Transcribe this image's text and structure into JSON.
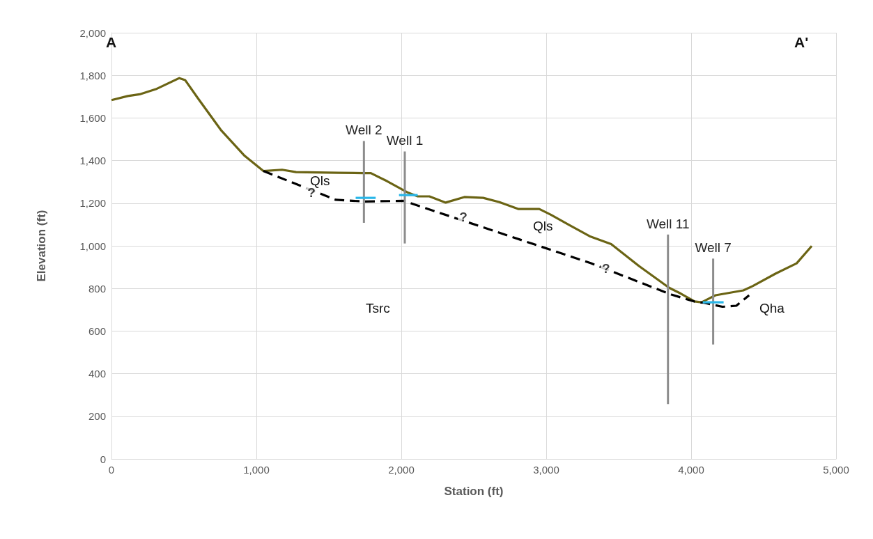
{
  "chart_data": {
    "type": "line",
    "xlabel": "Station (ft)",
    "ylabel": "Elevation (ft)",
    "xlim": [
      0,
      5000
    ],
    "xticks": [
      0,
      {
        "value": 1000,
        "label": "1,000"
      },
      {
        "value": 2000,
        "label": "2,000"
      },
      {
        "value": 3000,
        "label": "3,000"
      },
      {
        "value": 4000,
        "label": "4,000"
      },
      {
        "value": 5000,
        "label": "5,000"
      }
    ],
    "ylim": [
      0,
      2000
    ],
    "yticks": [
      0,
      200,
      400,
      600,
      800,
      {
        "value": 1000,
        "label": "1,000"
      },
      {
        "value": 1200,
        "label": "1,200"
      },
      {
        "value": 1400,
        "label": "1,400"
      },
      {
        "value": 1600,
        "label": "1,600"
      },
      {
        "value": 1800,
        "label": "1,800"
      },
      {
        "value": 2000,
        "label": "2,000"
      }
    ],
    "grid": true,
    "legend": false,
    "marker": "none",
    "line_style": "solid",
    "series": [
      {
        "color": "#6b6414",
        "x": [
          0,
          113,
          194,
          306,
          468,
          508,
          597,
          758,
          919,
          1048,
          1177,
          1274,
          1565,
          1742,
          1790,
          1903,
          2048,
          2113,
          2194,
          2306,
          2435,
          2565,
          2677,
          2806,
          2952,
          3032,
          3161,
          3306,
          3448,
          3640,
          3848,
          3928,
          4024,
          4072,
          4168,
          4360,
          4424,
          4584,
          4728,
          4832
        ],
        "values": [
          1684,
          1703,
          1711,
          1735,
          1787,
          1778,
          1692,
          1541,
          1422,
          1351,
          1357,
          1346,
          1343,
          1341,
          1341,
          1303,
          1249,
          1232,
          1232,
          1203,
          1229,
          1225,
          1205,
          1173,
          1173,
          1146,
          1097,
          1043,
          1008,
          905,
          803,
          776,
          739,
          735,
          768,
          791,
          811,
          870,
          918,
          999
        ]
      },
      {
        "color": "#000000",
        "line_style": "dashed",
        "x": [
          1048,
          1548,
          1742,
          2016,
          3306,
          3864,
          4040,
          4088,
          4216,
          4312,
          4400
        ],
        "values": [
          1351,
          1216,
          1208,
          1211,
          919,
          771,
          735,
          733,
          714,
          719,
          768
        ]
      },
      {
        "name": "Well 2",
        "color": "#8c8c8c",
        "x": [
          1742,
          1742
        ],
        "values": [
          1108,
          1492
        ]
      },
      {
        "name": "Well 1",
        "color": "#8c8c8c",
        "x": [
          2024,
          2024
        ],
        "values": [
          1011,
          1443
        ]
      },
      {
        "name": "Well 11",
        "color": "#8c8c8c",
        "x": [
          3840,
          3840
        ],
        "values": [
          257,
          1053
        ]
      },
      {
        "name": "Well 7",
        "color": "#8c8c8c",
        "x": [
          4152,
          4152
        ],
        "values": [
          537,
          940
        ]
      },
      {
        "color": "#29b6e8",
        "x": [
          1685,
          1823
        ],
        "values": [
          1225,
          1225
        ]
      },
      {
        "color": "#29b6e8",
        "x": [
          1984,
          2113
        ],
        "values": [
          1238,
          1238
        ]
      },
      {
        "color": "#29b6e8",
        "x": [
          4080,
          4224
        ],
        "values": [
          735,
          735
        ]
      }
    ],
    "annotations": [
      "A",
      "A'",
      "Qls",
      "Qls",
      "Tsrc",
      "Qha",
      {
        "text": "?",
        "x": 1380,
        "y": 1249
      },
      {
        "text": "?",
        "x": 2428,
        "y": 1137
      },
      {
        "text": "?",
        "x": 3413,
        "y": 895
      }
    ]
  }
}
